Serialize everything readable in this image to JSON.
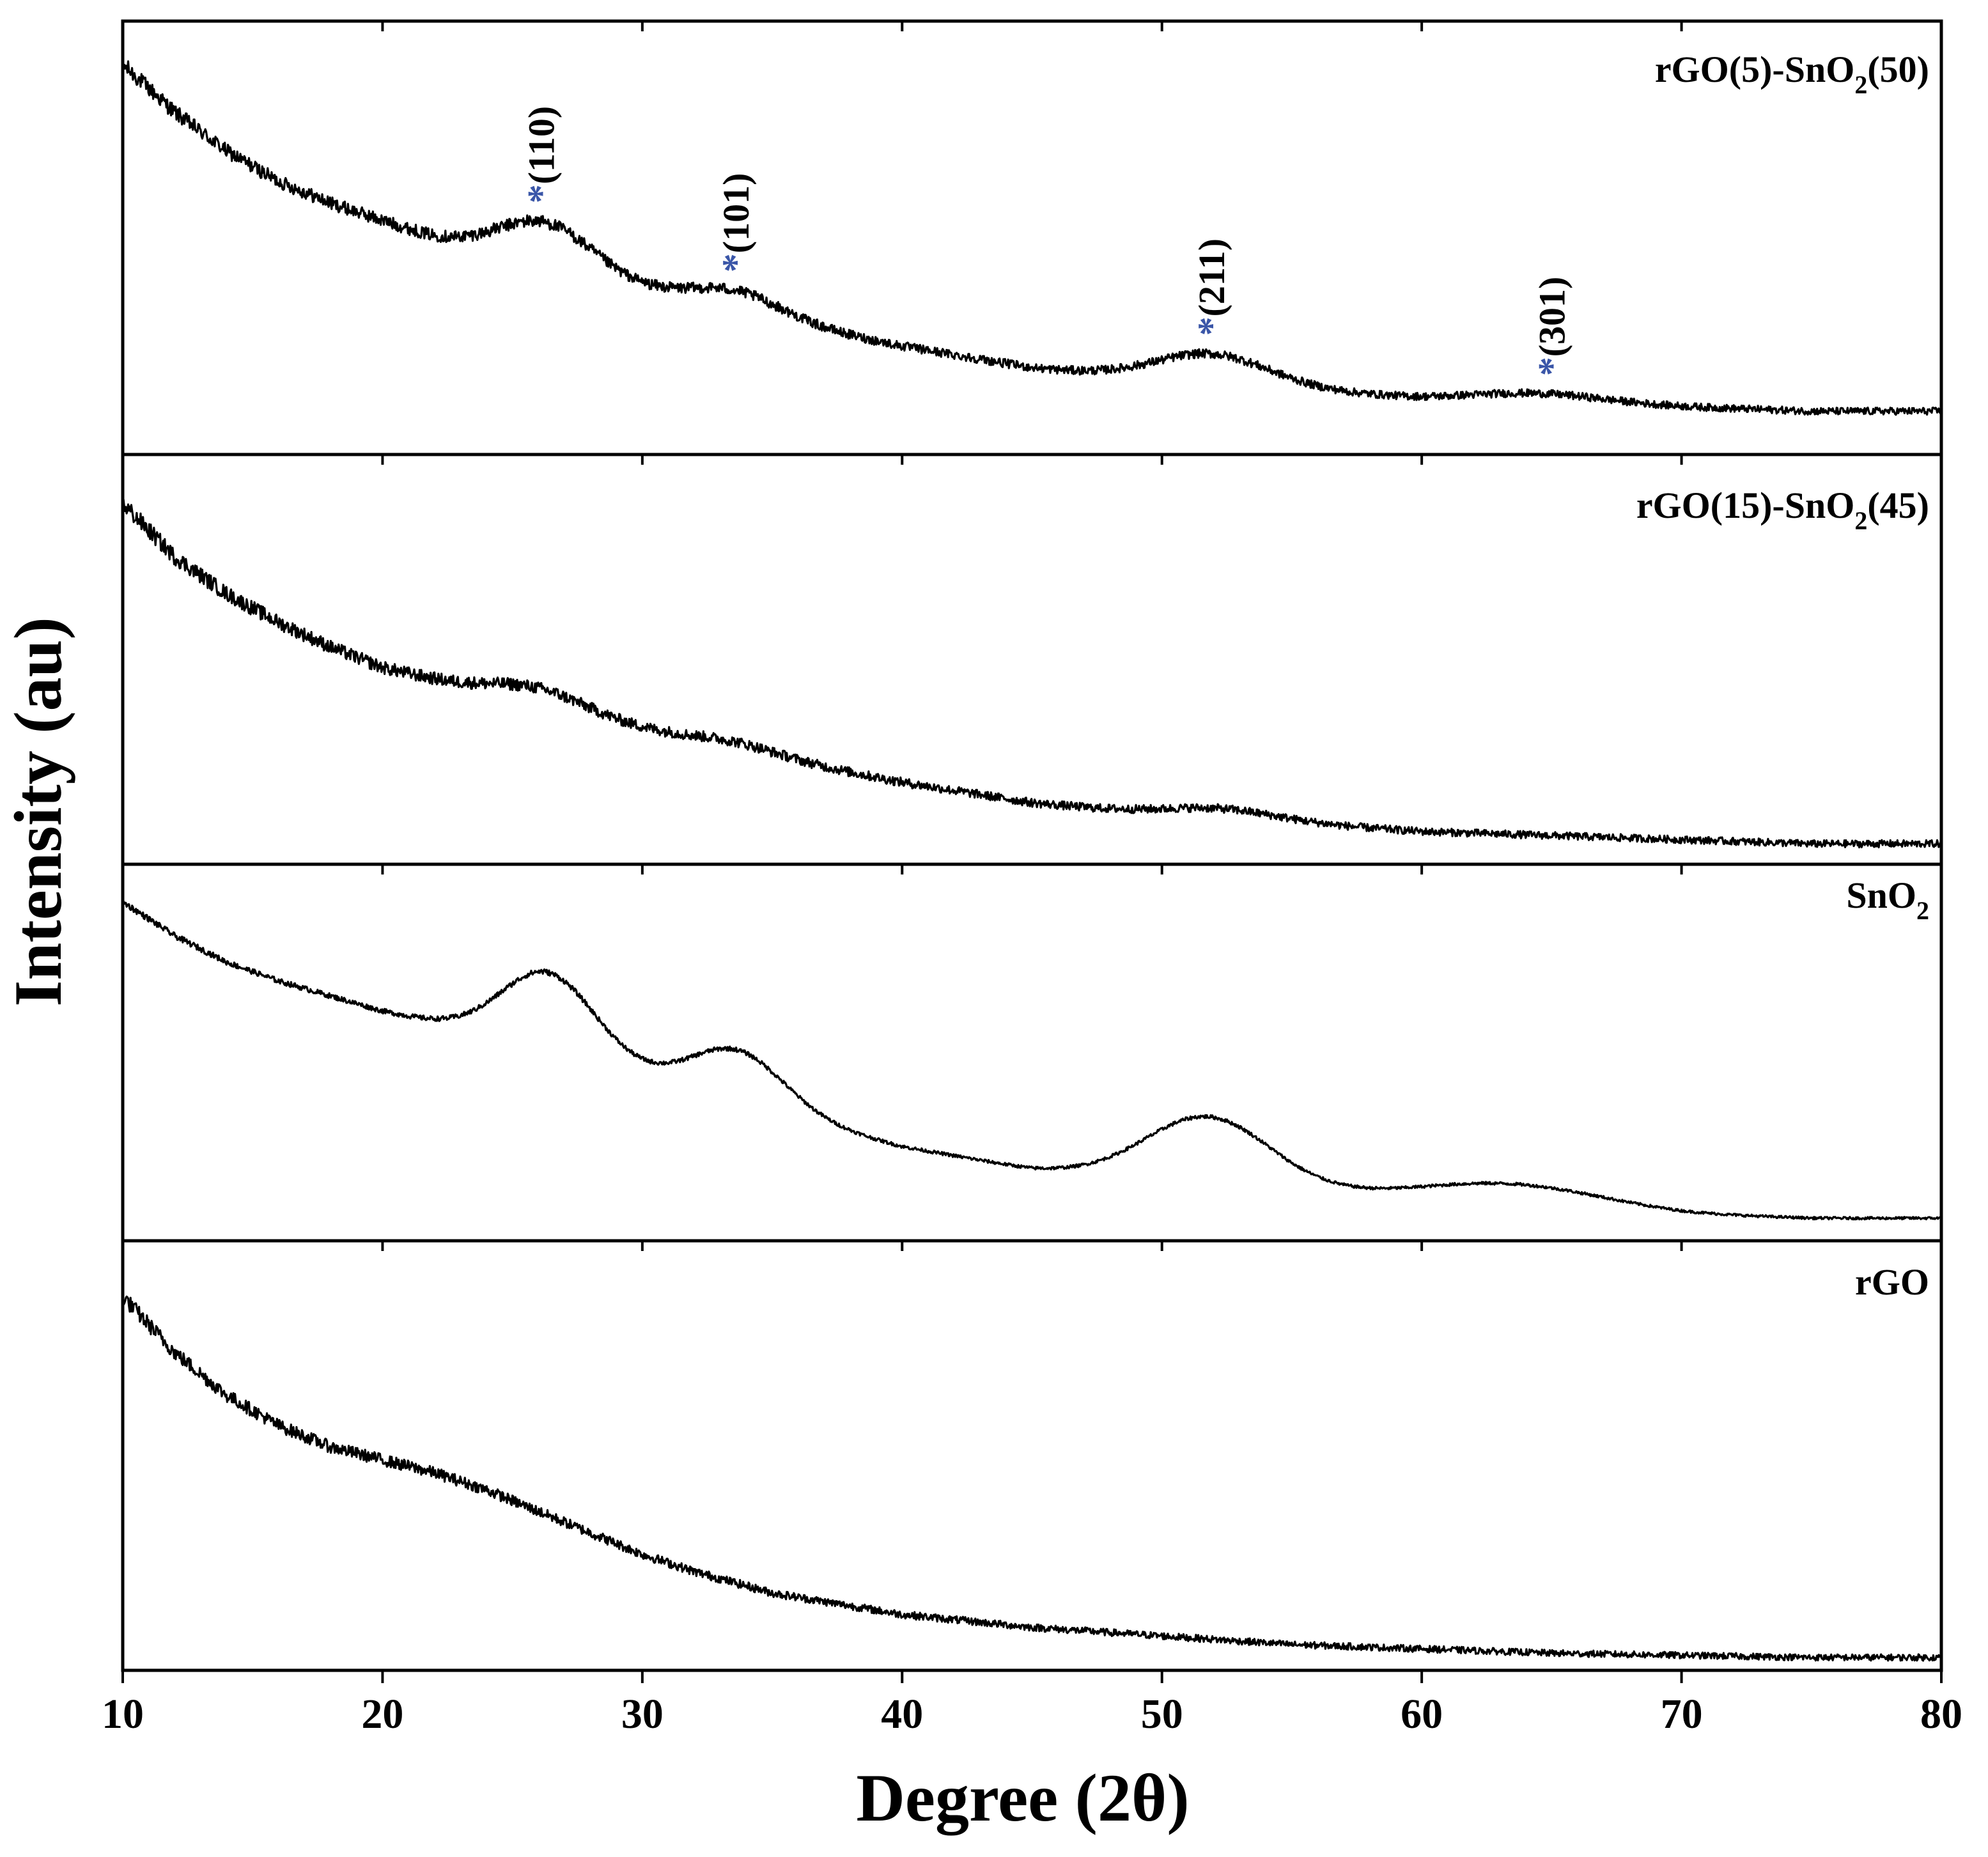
{
  "chart_data": {
    "type": "line",
    "xlabel": "Degree (2θ)",
    "ylabel": "Intensity (au)",
    "xlim": [
      10,
      80
    ],
    "xticks": [
      10,
      20,
      30,
      40,
      50,
      60,
      70,
      80
    ],
    "star_color": "#3a56a8",
    "panels": [
      {
        "name": "rGO(5)-SnO2(50)",
        "title": {
          "main": "rGO(5)-SnO",
          "sub": "2",
          "tail": "(50)"
        },
        "ylim": [
          0,
          1
        ],
        "noise": 0.014,
        "baseline": [
          [
            10,
            0.9
          ],
          [
            12,
            0.79
          ],
          [
            14,
            0.7
          ],
          [
            16,
            0.63
          ],
          [
            18,
            0.58
          ],
          [
            20,
            0.54
          ],
          [
            22,
            0.5
          ],
          [
            24,
            0.47
          ],
          [
            26,
            0.44
          ],
          [
            28,
            0.41
          ],
          [
            30,
            0.38
          ],
          [
            32,
            0.35
          ],
          [
            35,
            0.31
          ],
          [
            40,
            0.25
          ],
          [
            45,
            0.2
          ],
          [
            50,
            0.17
          ],
          [
            55,
            0.15
          ],
          [
            60,
            0.13
          ],
          [
            65,
            0.12
          ],
          [
            70,
            0.11
          ],
          [
            75,
            0.1
          ],
          [
            80,
            0.1
          ]
        ],
        "peaks": [
          {
            "center": 26.3,
            "width": 1.8,
            "height": 0.1
          },
          {
            "center": 33.6,
            "width": 1.8,
            "height": 0.05
          },
          {
            "center": 51.9,
            "width": 2.2,
            "height": 0.07
          },
          {
            "center": 64.5,
            "width": 2.5,
            "height": 0.02
          }
        ],
        "peak_labels": [
          {
            "label": "*(110)",
            "x": 26.1
          },
          {
            "label": "*(101)",
            "x": 33.6
          },
          {
            "label": "*(211)",
            "x": 51.9
          },
          {
            "label": "*(301)",
            "x": 65.0
          }
        ]
      },
      {
        "name": "rGO(15)-SnO2(45)",
        "title": {
          "main": "rGO(15)-SnO",
          "sub": "2",
          "tail": "(45)"
        },
        "ylim": [
          0,
          1
        ],
        "noise": 0.016,
        "baseline": [
          [
            10,
            0.88
          ],
          [
            12,
            0.75
          ],
          [
            14,
            0.66
          ],
          [
            16,
            0.59
          ],
          [
            18,
            0.53
          ],
          [
            20,
            0.48
          ],
          [
            22,
            0.45
          ],
          [
            24,
            0.42
          ],
          [
            26,
            0.39
          ],
          [
            28,
            0.36
          ],
          [
            30,
            0.33
          ],
          [
            32,
            0.3
          ],
          [
            35,
            0.26
          ],
          [
            40,
            0.2
          ],
          [
            45,
            0.15
          ],
          [
            50,
            0.12
          ],
          [
            55,
            0.1
          ],
          [
            60,
            0.08
          ],
          [
            65,
            0.07
          ],
          [
            70,
            0.06
          ],
          [
            75,
            0.05
          ],
          [
            80,
            0.05
          ]
        ],
        "peaks": [
          {
            "center": 26.0,
            "width": 1.8,
            "height": 0.04
          },
          {
            "center": 33.5,
            "width": 1.8,
            "height": 0.02
          },
          {
            "center": 52.2,
            "width": 2.2,
            "height": 0.025
          }
        ],
        "peak_labels": []
      },
      {
        "name": "SnO2",
        "title": {
          "main": "SnO",
          "sub": "2",
          "tail": ""
        },
        "ylim": [
          0,
          1
        ],
        "noise": 0.006,
        "baseline": [
          [
            10,
            0.9
          ],
          [
            12,
            0.81
          ],
          [
            14,
            0.74
          ],
          [
            16,
            0.69
          ],
          [
            18,
            0.65
          ],
          [
            20,
            0.61
          ],
          [
            22,
            0.58
          ],
          [
            24,
            0.55
          ],
          [
            26,
            0.52
          ],
          [
            28,
            0.48
          ],
          [
            30,
            0.44
          ],
          [
            32,
            0.4
          ],
          [
            35,
            0.34
          ],
          [
            40,
            0.25
          ],
          [
            45,
            0.19
          ],
          [
            50,
            0.16
          ],
          [
            55,
            0.13
          ],
          [
            60,
            0.11
          ],
          [
            65,
            0.09
          ],
          [
            70,
            0.07
          ],
          [
            75,
            0.06
          ],
          [
            80,
            0.06
          ]
        ],
        "peaks": [
          {
            "center": 26.4,
            "width": 1.8,
            "height": 0.2
          },
          {
            "center": 33.7,
            "width": 1.8,
            "height": 0.14
          },
          {
            "center": 51.8,
            "width": 2.4,
            "height": 0.18
          },
          {
            "center": 63.5,
            "width": 3.5,
            "height": 0.055
          }
        ],
        "peak_labels": []
      },
      {
        "name": "rGO",
        "title": {
          "main": "rGO",
          "sub": "",
          "tail": ""
        },
        "ylim": [
          0,
          1
        ],
        "noise": 0.014,
        "baseline": [
          [
            10,
            0.87
          ],
          [
            12,
            0.74
          ],
          [
            14,
            0.64
          ],
          [
            16,
            0.57
          ],
          [
            18,
            0.52
          ],
          [
            20,
            0.49
          ],
          [
            22,
            0.46
          ],
          [
            24,
            0.42
          ],
          [
            26,
            0.37
          ],
          [
            28,
            0.32
          ],
          [
            30,
            0.27
          ],
          [
            32,
            0.23
          ],
          [
            35,
            0.18
          ],
          [
            40,
            0.13
          ],
          [
            45,
            0.1
          ],
          [
            50,
            0.08
          ],
          [
            55,
            0.06
          ],
          [
            60,
            0.05
          ],
          [
            65,
            0.04
          ],
          [
            70,
            0.035
          ],
          [
            75,
            0.03
          ],
          [
            80,
            0.03
          ]
        ],
        "peaks": [],
        "peak_labels": []
      }
    ]
  }
}
